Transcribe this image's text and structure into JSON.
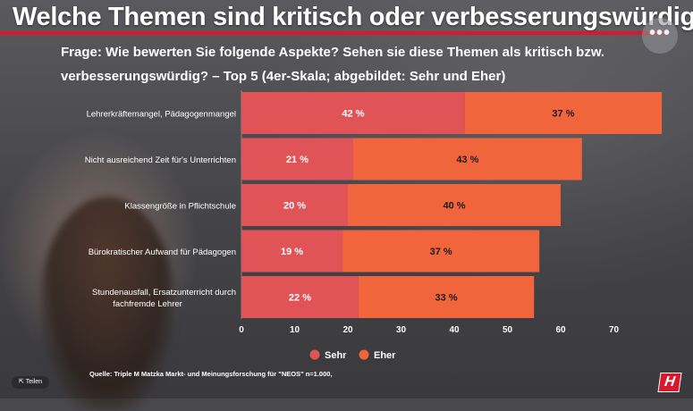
{
  "headline": "Welche Themen sind kritisch oder verbesserungswürdig",
  "subtitle": "Frage: Wie bewerten Sie folgende Aspekte? Sehen sie diese Themen als kritisch bzw. verbesserungswürdig? – Top 5 (4er-Skala; abgebildet: Sehr und Eher)",
  "source": "Quelle: Triple M Matzka Markt- und Meinungsforschung für \"NEOS\" n=1.000,",
  "share_label": "Teilen",
  "more_label": "•••",
  "logo_text": "H",
  "colors": {
    "sehr": "#e05458",
    "eher": "#f0653c",
    "accent": "#d8182c"
  },
  "chart_data": {
    "type": "bar",
    "orientation": "horizontal",
    "stacked": true,
    "categories": [
      "Lehrerkräftemangel, Pädagogenmangel",
      "Nicht ausreichend Zeit für's Unterrichten",
      "Klassengröße in Pflichtschule",
      "Bürokratischer Aufwand für Pädagogen",
      "Stundenausfall, Ersatzunterricht durch fachfremde Lehrer"
    ],
    "series": [
      {
        "name": "Sehr",
        "values": [
          42,
          21,
          20,
          19,
          22
        ],
        "labels": [
          "42 %",
          "21 %",
          "20 %",
          "19 %",
          "22 %"
        ]
      },
      {
        "name": "Eher",
        "values": [
          37,
          43,
          40,
          37,
          33
        ],
        "labels": [
          "37 %",
          "43 %",
          "40 %",
          "37 %",
          "33 %"
        ]
      }
    ],
    "xlim": [
      0,
      80
    ],
    "xticks": [
      "0",
      "10",
      "20",
      "30",
      "40",
      "50",
      "60",
      "70"
    ],
    "legend_position": "bottom"
  }
}
